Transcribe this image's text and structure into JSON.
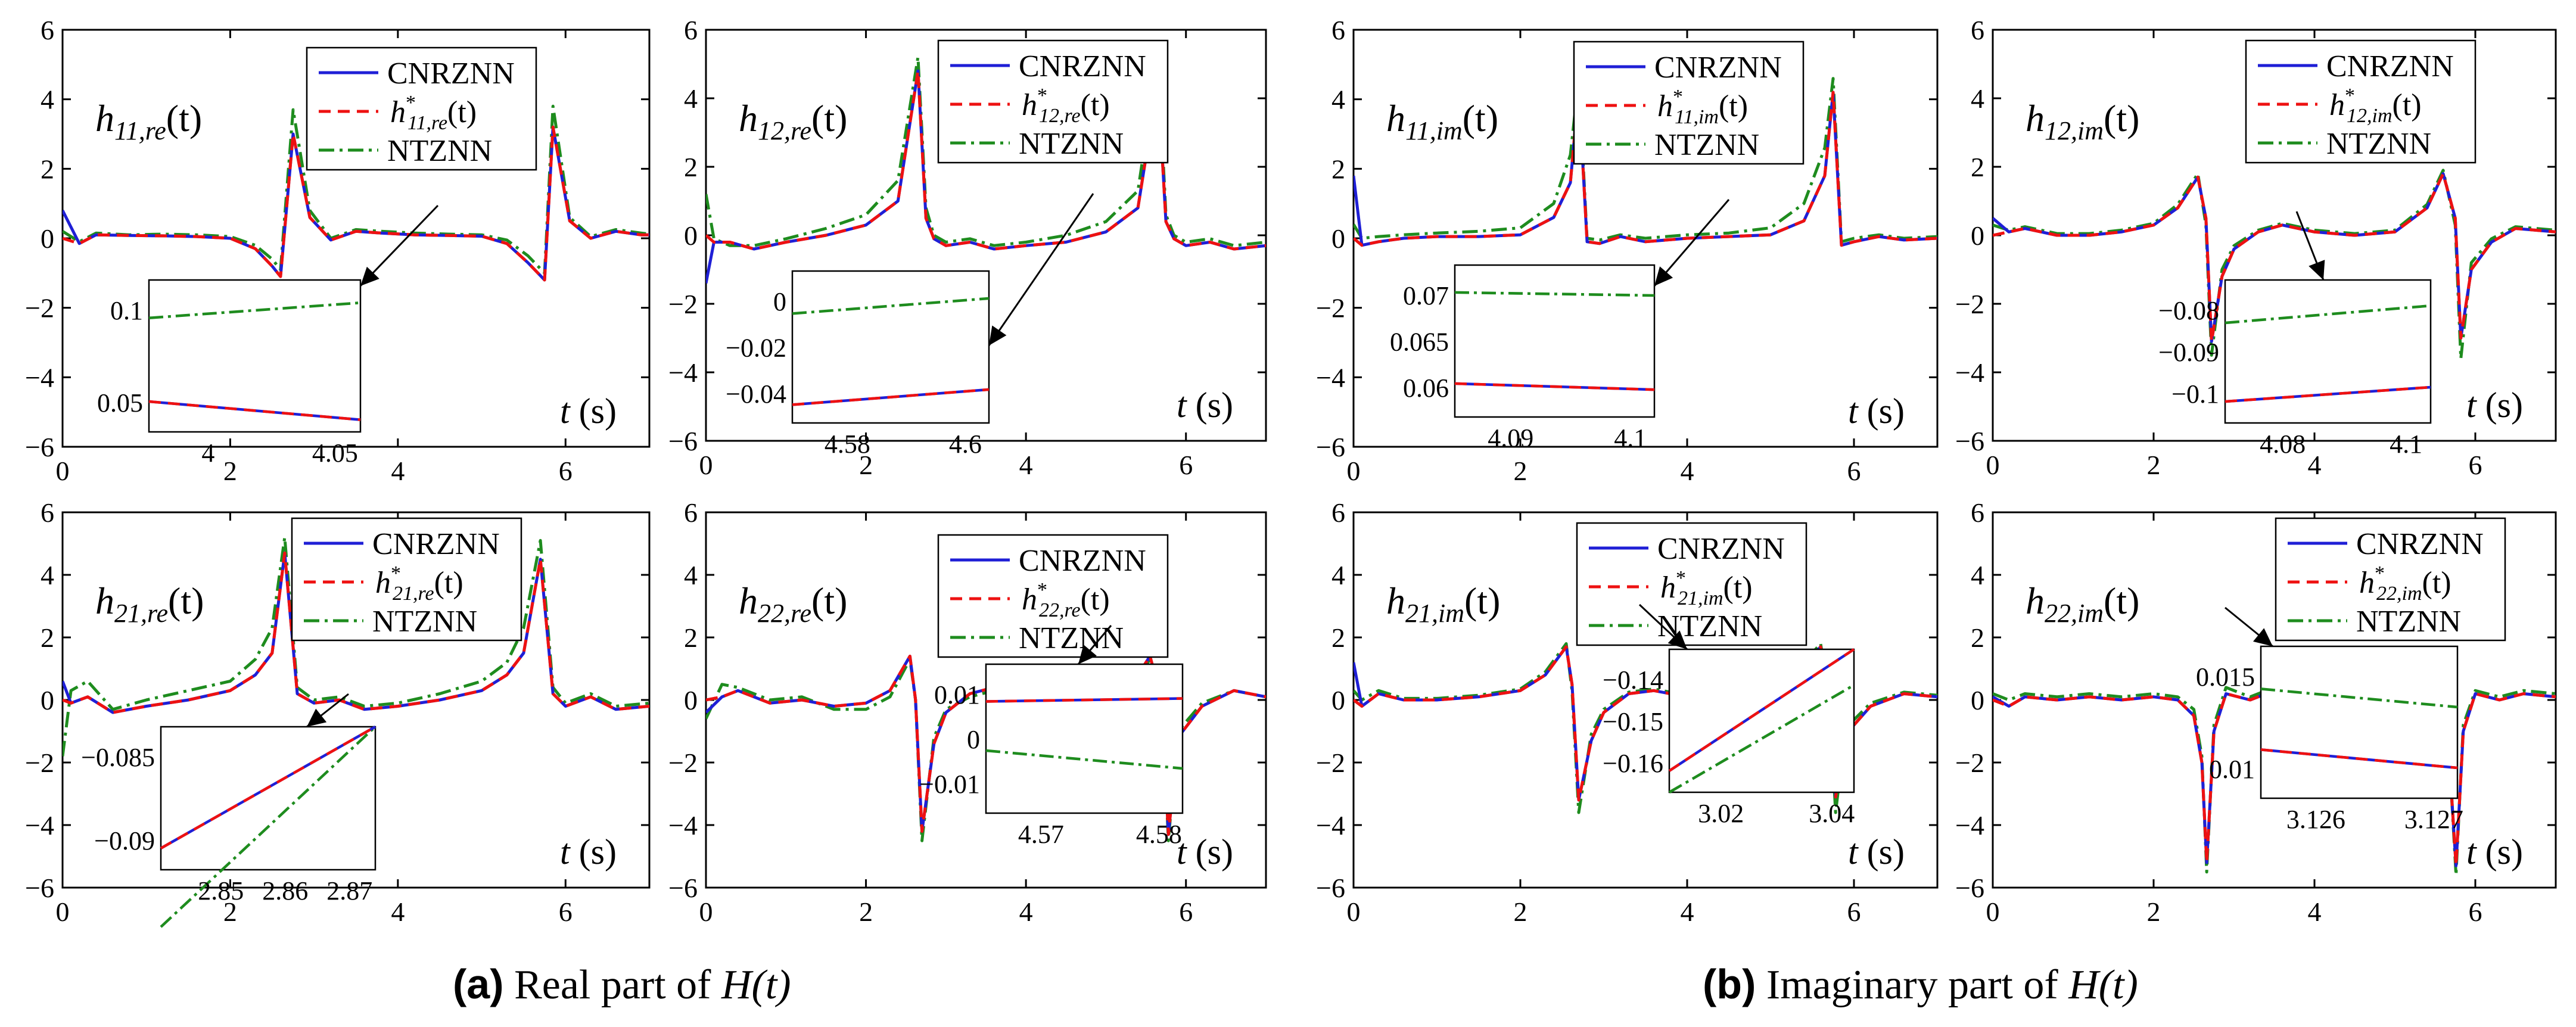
{
  "figure": {
    "caption_a": {
      "label": "(a)",
      "text": "Real part of",
      "math": "H(t)"
    },
    "caption_b": {
      "label": "(b)",
      "text": "Imaginary part of",
      "math": "H(t)"
    }
  },
  "colors": {
    "cnrznn": "#1f1fd6",
    "exact": "#ee1111",
    "ntznn": "#1e8c1e",
    "axis": "#000000"
  },
  "legend": [
    "CNRZNN",
    "h*",
    "NTZNN"
  ],
  "chart_data": [
    {
      "id": "h11re",
      "type": "line",
      "title": "h",
      "sub": "11,re",
      "star_sub": "11,re",
      "xlabel": "t (s)",
      "xlim": [
        0,
        7
      ],
      "ylim": [
        -6,
        6
      ],
      "xticks": [
        0,
        2,
        4,
        6
      ],
      "yticks": [
        -6,
        -4,
        -2,
        0,
        2,
        4,
        6
      ],
      "x": [
        0,
        0.2,
        0.4,
        0.8,
        1.2,
        1.6,
        2.0,
        2.3,
        2.5,
        2.6,
        2.75,
        2.95,
        3.2,
        3.5,
        3.8,
        4.2,
        4.6,
        5.0,
        5.3,
        5.55,
        5.75,
        5.85,
        6.05,
        6.3,
        6.6,
        6.9,
        7.0
      ],
      "cnrznn": [
        0.8,
        -0.15,
        0.1,
        0.08,
        0.07,
        0.05,
        0.0,
        -0.3,
        -0.8,
        -1.1,
        3.0,
        0.6,
        -0.05,
        0.2,
        0.15,
        0.1,
        0.08,
        0.06,
        -0.15,
        -0.7,
        -1.2,
        3.2,
        0.5,
        0.0,
        0.2,
        0.1,
        0.1
      ],
      "exact": [
        0.0,
        -0.15,
        0.1,
        0.08,
        0.07,
        0.05,
        0.0,
        -0.3,
        -0.8,
        -1.1,
        3.0,
        0.6,
        -0.05,
        0.2,
        0.15,
        0.1,
        0.08,
        0.06,
        -0.15,
        -0.7,
        -1.2,
        3.2,
        0.5,
        0.0,
        0.2,
        0.1,
        0.1
      ],
      "ntznn": [
        0.2,
        -0.1,
        0.15,
        0.1,
        0.12,
        0.1,
        0.05,
        -0.2,
        -0.6,
        -0.9,
        3.7,
        0.8,
        0.0,
        0.25,
        0.2,
        0.15,
        0.12,
        0.1,
        -0.05,
        -0.5,
        -1.0,
        3.8,
        0.6,
        0.05,
        0.25,
        0.15,
        0.12
      ],
      "inset": {
        "xticks": [
          "4",
          "4.05"
        ],
        "yticks": [
          "0.1",
          "0.05"
        ],
        "ntznn": [
          0.75,
          0.85
        ],
        "cnrznn": [
          0.2,
          0.08
        ]
      }
    },
    {
      "id": "h12re",
      "type": "line",
      "title": "h",
      "sub": "12,re",
      "star_sub": "12,re",
      "xlabel": "t (s)",
      "xlim": [
        0,
        7
      ],
      "ylim": [
        -6,
        6
      ],
      "xticks": [
        0,
        2,
        4,
        6
      ],
      "yticks": [
        -6,
        -4,
        -2,
        0,
        2,
        4,
        6
      ],
      "x": [
        0,
        0.1,
        0.3,
        0.6,
        1.0,
        1.5,
        2.0,
        2.4,
        2.65,
        2.75,
        2.85,
        3.0,
        3.3,
        3.6,
        4.0,
        4.5,
        5.0,
        5.4,
        5.65,
        5.75,
        5.85,
        6.0,
        6.3,
        6.6,
        7.0
      ],
      "cnrznn": [
        -1.4,
        -0.2,
        -0.2,
        -0.4,
        -0.2,
        0.0,
        0.3,
        1.0,
        4.8,
        0.5,
        -0.1,
        -0.3,
        -0.2,
        -0.4,
        -0.3,
        -0.2,
        0.1,
        0.8,
        4.5,
        0.4,
        -0.1,
        -0.3,
        -0.2,
        -0.4,
        -0.3
      ],
      "exact": [
        0.0,
        -0.2,
        -0.2,
        -0.4,
        -0.2,
        0.0,
        0.3,
        1.0,
        4.8,
        0.5,
        -0.1,
        -0.3,
        -0.2,
        -0.4,
        -0.3,
        -0.2,
        0.1,
        0.8,
        4.5,
        0.4,
        -0.1,
        -0.3,
        -0.2,
        -0.4,
        -0.3
      ],
      "ntznn": [
        1.2,
        -0.1,
        -0.3,
        -0.3,
        -0.1,
        0.2,
        0.6,
        1.6,
        5.2,
        0.8,
        0.0,
        -0.2,
        -0.1,
        -0.3,
        -0.2,
        0.0,
        0.4,
        1.3,
        5.2,
        0.6,
        0.0,
        -0.2,
        -0.1,
        -0.3,
        -0.2
      ],
      "inset": {
        "xticks": [
          "4.58",
          "4.6"
        ],
        "yticks": [
          "0",
          "-0.02",
          "-0.04"
        ],
        "ntznn": [
          0.72,
          0.82
        ],
        "cnrznn": [
          0.12,
          0.22
        ]
      }
    },
    {
      "id": "h11im",
      "type": "line",
      "title": "h",
      "sub": "11,im",
      "star_sub": "11,im",
      "xlabel": "t (s)",
      "xlim": [
        0,
        7
      ],
      "ylim": [
        -6,
        6
      ],
      "xticks": [
        0,
        2,
        4,
        6
      ],
      "yticks": [
        -6,
        -4,
        -2,
        0,
        2,
        4,
        6
      ],
      "x": [
        0,
        0.1,
        0.3,
        0.6,
        1.0,
        1.5,
        2.0,
        2.4,
        2.6,
        2.7,
        2.8,
        2.95,
        3.2,
        3.5,
        4.0,
        4.5,
        5.0,
        5.4,
        5.65,
        5.75,
        5.85,
        6.0,
        6.3,
        6.6,
        7.0
      ],
      "cnrznn": [
        1.8,
        -0.2,
        -0.1,
        0.0,
        0.05,
        0.05,
        0.1,
        0.6,
        1.6,
        4.3,
        -0.1,
        -0.15,
        0.05,
        -0.1,
        0.0,
        0.05,
        0.1,
        0.5,
        1.8,
        4.2,
        -0.2,
        -0.1,
        0.05,
        -0.05,
        0.0
      ],
      "exact": [
        0.0,
        -0.2,
        -0.1,
        0.0,
        0.05,
        0.05,
        0.1,
        0.6,
        1.6,
        4.3,
        -0.1,
        -0.15,
        0.05,
        -0.1,
        0.0,
        0.05,
        0.1,
        0.5,
        1.8,
        4.2,
        -0.2,
        -0.1,
        0.05,
        -0.05,
        0.0
      ],
      "ntznn": [
        0.4,
        0.0,
        0.05,
        0.1,
        0.15,
        0.2,
        0.3,
        1.0,
        2.4,
        4.6,
        0.0,
        -0.05,
        0.1,
        0.0,
        0.1,
        0.15,
        0.3,
        1.0,
        2.6,
        4.6,
        -0.1,
        0.0,
        0.1,
        0.0,
        0.05
      ],
      "inset": {
        "xticks": [
          "4.09",
          "4.1"
        ],
        "yticks": [
          "0.07",
          "0.065",
          "0.06"
        ],
        "ntznn": [
          0.82,
          0.8
        ],
        "cnrznn": [
          0.22,
          0.18
        ]
      }
    },
    {
      "id": "h12im",
      "type": "line",
      "title": "h",
      "sub": "12,im",
      "star_sub": "12,im",
      "xlabel": "t (s)",
      "xlim": [
        0,
        7
      ],
      "ylim": [
        -6,
        6
      ],
      "xticks": [
        0,
        2,
        4,
        6
      ],
      "yticks": [
        -6,
        -4,
        -2,
        0,
        2,
        4,
        6
      ],
      "x": [
        0,
        0.2,
        0.4,
        0.8,
        1.2,
        1.6,
        2.0,
        2.3,
        2.55,
        2.65,
        2.72,
        2.85,
        3.0,
        3.3,
        3.6,
        4.0,
        4.5,
        5.0,
        5.4,
        5.6,
        5.75,
        5.82,
        5.95,
        6.2,
        6.5,
        7.0
      ],
      "cnrznn": [
        0.5,
        0.1,
        0.2,
        0.0,
        0.0,
        0.1,
        0.3,
        0.8,
        1.7,
        0.5,
        -3.1,
        -1.2,
        -0.4,
        0.1,
        0.3,
        0.1,
        0.0,
        0.1,
        0.8,
        1.8,
        0.5,
        -3.0,
        -1.0,
        -0.2,
        0.2,
        0.1
      ],
      "exact": [
        0.0,
        0.1,
        0.2,
        0.0,
        0.0,
        0.1,
        0.3,
        0.8,
        1.7,
        0.5,
        -3.1,
        -1.2,
        -0.4,
        0.1,
        0.3,
        0.1,
        0.0,
        0.1,
        0.8,
        1.8,
        0.5,
        -3.0,
        -1.0,
        -0.2,
        0.2,
        0.1
      ],
      "ntznn": [
        0.3,
        0.15,
        0.25,
        0.05,
        0.05,
        0.15,
        0.35,
        0.9,
        1.8,
        0.3,
        -3.5,
        -1.0,
        -0.3,
        0.15,
        0.35,
        0.15,
        0.05,
        0.15,
        0.9,
        1.9,
        0.3,
        -3.6,
        -0.8,
        -0.1,
        0.25,
        0.15
      ],
      "inset": {
        "xticks": [
          "4.08",
          "4.1"
        ],
        "yticks": [
          "-0.08",
          "-0.09",
          "-0.1"
        ],
        "ntznn": [
          0.7,
          0.82
        ],
        "cnrznn": [
          0.15,
          0.25
        ]
      }
    },
    {
      "id": "h21re",
      "type": "line",
      "title": "h",
      "sub": "21,re",
      "star_sub": "21,re",
      "xlabel": "t (s)",
      "xlim": [
        0,
        7
      ],
      "ylim": [
        -6,
        6
      ],
      "xticks": [
        0,
        2,
        4,
        6
      ],
      "yticks": [
        -6,
        -4,
        -2,
        0,
        2,
        4,
        6
      ],
      "x": [
        0,
        0.1,
        0.3,
        0.6,
        1.0,
        1.5,
        2.0,
        2.3,
        2.5,
        2.65,
        2.8,
        3.0,
        3.3,
        3.6,
        4.0,
        4.5,
        5.0,
        5.3,
        5.5,
        5.7,
        5.85,
        6.0,
        6.3,
        6.6,
        7.0
      ],
      "cnrznn": [
        0.6,
        -0.1,
        0.1,
        -0.4,
        -0.2,
        0.0,
        0.3,
        0.8,
        1.5,
        4.7,
        0.2,
        -0.1,
        0.0,
        -0.3,
        -0.2,
        0.0,
        0.3,
        0.8,
        1.5,
        4.5,
        0.2,
        -0.2,
        0.1,
        -0.3,
        -0.2
      ],
      "exact": [
        0.0,
        -0.1,
        0.1,
        -0.4,
        -0.2,
        0.0,
        0.3,
        0.8,
        1.5,
        4.7,
        0.2,
        -0.1,
        0.0,
        -0.3,
        -0.2,
        0.0,
        0.3,
        0.8,
        1.5,
        4.5,
        0.2,
        -0.2,
        0.1,
        -0.3,
        -0.2
      ],
      "ntznn": [
        -1.8,
        0.3,
        0.6,
        -0.3,
        0.0,
        0.3,
        0.6,
        1.3,
        2.3,
        5.2,
        0.4,
        0.0,
        0.1,
        -0.2,
        -0.1,
        0.2,
        0.6,
        1.2,
        2.3,
        5.1,
        0.4,
        -0.1,
        0.2,
        -0.2,
        -0.1
      ],
      "inset": {
        "xticks": [
          "2.85",
          "2.86",
          "2.87"
        ],
        "yticks": [
          "-0.085",
          "-0.09"
        ],
        "ntznn": [
          -0.4,
          1.0
        ],
        "cnrznn": [
          0.15,
          1.0
        ]
      }
    },
    {
      "id": "h22re",
      "type": "line",
      "title": "h",
      "sub": "22,re",
      "star_sub": "22,re",
      "xlabel": "t (s)",
      "xlim": [
        0,
        7
      ],
      "ylim": [
        -6,
        6
      ],
      "xticks": [
        0,
        2,
        4,
        6
      ],
      "yticks": [
        -6,
        -4,
        -2,
        0,
        2,
        4,
        6
      ],
      "x": [
        0,
        0.2,
        0.4,
        0.8,
        1.2,
        1.6,
        2.0,
        2.3,
        2.55,
        2.62,
        2.7,
        2.85,
        3.0,
        3.3,
        3.6,
        4.0,
        4.5,
        5.0,
        5.3,
        5.55,
        5.7,
        5.78,
        5.9,
        6.2,
        6.6,
        7.0
      ],
      "cnrznn": [
        -0.4,
        0.1,
        0.3,
        -0.1,
        0.0,
        -0.2,
        -0.1,
        0.3,
        1.4,
        0.0,
        -4.2,
        -1.4,
        -0.4,
        0.2,
        0.4,
        0.1,
        0.0,
        0.1,
        0.4,
        1.4,
        0.0,
        -4.3,
        -1.2,
        -0.2,
        0.3,
        0.1
      ],
      "exact": [
        0.0,
        0.1,
        0.3,
        -0.1,
        0.0,
        -0.2,
        -0.1,
        0.3,
        1.4,
        0.0,
        -4.2,
        -1.4,
        -0.4,
        0.2,
        0.4,
        0.1,
        0.0,
        0.1,
        0.4,
        1.4,
        0.0,
        -4.3,
        -1.2,
        -0.2,
        0.3,
        0.1
      ],
      "ntznn": [
        -0.6,
        0.5,
        0.4,
        0.0,
        0.1,
        -0.3,
        -0.3,
        0.1,
        1.3,
        0.0,
        -4.5,
        -1.2,
        -0.3,
        0.1,
        0.3,
        0.0,
        -0.2,
        -0.1,
        0.3,
        1.3,
        0.0,
        -4.5,
        -1.0,
        -0.1,
        0.3,
        0.1
      ],
      "inset": {
        "xticks": [
          "4.57",
          "4.58"
        ],
        "yticks": [
          "0.01",
          "0",
          "-0.01"
        ],
        "ntznn": [
          0.42,
          0.3
        ],
        "cnrznn": [
          0.75,
          0.77
        ]
      }
    },
    {
      "id": "h21im",
      "type": "line",
      "title": "h",
      "sub": "21,im",
      "star_sub": "21,im",
      "xlabel": "t (s)",
      "xlim": [
        0,
        7
      ],
      "ylim": [
        -6,
        6
      ],
      "xticks": [
        0,
        2,
        4,
        6
      ],
      "yticks": [
        -6,
        -4,
        -2,
        0,
        2,
        4,
        6
      ],
      "x": [
        0,
        0.1,
        0.3,
        0.6,
        1.0,
        1.5,
        2.0,
        2.3,
        2.55,
        2.62,
        2.7,
        2.85,
        3.0,
        3.3,
        3.6,
        4.0,
        4.5,
        5.0,
        5.3,
        5.6,
        5.7,
        5.78,
        5.9,
        6.2,
        6.6,
        7.0
      ],
      "cnrznn": [
        1.2,
        -0.2,
        0.2,
        0.0,
        0.0,
        0.1,
        0.3,
        0.8,
        1.7,
        0.5,
        -3.2,
        -1.3,
        -0.4,
        0.2,
        0.3,
        0.1,
        0.1,
        0.3,
        0.8,
        1.7,
        0.4,
        -3.1,
        -1.1,
        -0.2,
        0.2,
        0.1
      ],
      "exact": [
        0.0,
        -0.2,
        0.2,
        0.0,
        0.0,
        0.1,
        0.3,
        0.8,
        1.7,
        0.5,
        -3.2,
        -1.3,
        -0.4,
        0.2,
        0.3,
        0.1,
        0.1,
        0.3,
        0.8,
        1.7,
        0.4,
        -3.1,
        -1.1,
        -0.2,
        0.2,
        0.1
      ],
      "ntznn": [
        0.3,
        0.0,
        0.3,
        0.05,
        0.05,
        0.15,
        0.35,
        0.9,
        1.8,
        0.3,
        -3.6,
        -1.1,
        -0.3,
        0.25,
        0.35,
        0.15,
        0.15,
        0.35,
        0.9,
        1.8,
        0.2,
        -3.6,
        -0.9,
        -0.1,
        0.25,
        0.15
      ],
      "inset": {
        "xticks": [
          "3.02",
          "3.04"
        ],
        "yticks": [
          "-0.14",
          "-0.15",
          "-0.16"
        ],
        "ntznn": [
          0.0,
          0.75
        ],
        "cnrznn": [
          0.15,
          1.0
        ]
      }
    },
    {
      "id": "h22im",
      "type": "line",
      "title": "h",
      "sub": "22,im",
      "star_sub": "22,im",
      "xlabel": "t (s)",
      "xlim": [
        0,
        7
      ],
      "ylim": [
        -6,
        6
      ],
      "xticks": [
        0,
        2,
        4,
        6
      ],
      "yticks": [
        -6,
        -4,
        -2,
        0,
        2,
        4,
        6
      ],
      "x": [
        0,
        0.2,
        0.4,
        0.8,
        1.2,
        1.6,
        2.0,
        2.3,
        2.5,
        2.6,
        2.66,
        2.75,
        2.9,
        3.2,
        3.5,
        3.8,
        4.2,
        4.6,
        5.0,
        5.4,
        5.65,
        5.76,
        5.85,
        6.0,
        6.3,
        6.6,
        7.0
      ],
      "cnrznn": [
        0.1,
        -0.2,
        0.1,
        0.0,
        0.1,
        0.0,
        0.1,
        0.0,
        -0.5,
        -2.0,
        -5.2,
        -1.0,
        0.2,
        0.0,
        0.3,
        0.0,
        0.1,
        0.0,
        0.2,
        0.0,
        -0.8,
        -5.3,
        -1.0,
        0.2,
        0.0,
        0.2,
        0.1
      ],
      "exact": [
        0.0,
        -0.2,
        0.1,
        0.0,
        0.1,
        0.0,
        0.1,
        0.0,
        -0.5,
        -2.0,
        -5.2,
        -1.0,
        0.2,
        0.0,
        0.3,
        0.0,
        0.1,
        0.0,
        0.2,
        0.0,
        -0.8,
        -5.3,
        -1.0,
        0.2,
        0.0,
        0.2,
        0.1
      ],
      "ntznn": [
        0.2,
        0.0,
        0.2,
        0.1,
        0.2,
        0.1,
        0.2,
        0.1,
        -0.3,
        -1.8,
        -5.5,
        -0.8,
        0.4,
        0.1,
        0.4,
        0.1,
        0.2,
        0.1,
        0.3,
        0.1,
        -0.6,
        -5.6,
        -0.8,
        0.3,
        0.1,
        0.3,
        0.2
      ],
      "inset": {
        "xticks": [
          "3.126",
          "3.127"
        ],
        "yticks": [
          "0.015",
          "0.01"
        ],
        "ntznn": [
          0.72,
          0.6
        ],
        "cnrznn": [
          0.32,
          0.2
        ]
      }
    }
  ]
}
